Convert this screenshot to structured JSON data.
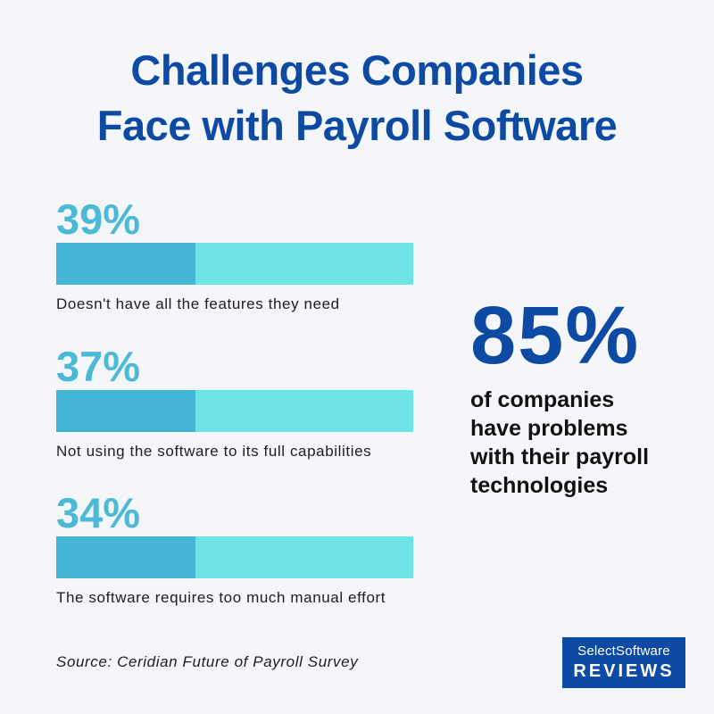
{
  "title": {
    "line1": "Challenges Companies",
    "line2": "Face with Payroll Software"
  },
  "chart_data": {
    "type": "bar",
    "title": "Challenges Companies Face with Payroll Software",
    "categories": [
      "Doesn't have all the features they need",
      "Not using the software to its full capabilities",
      "The software requires too much manual effort"
    ],
    "values": [
      39,
      37,
      34
    ],
    "value_labels": [
      "39%",
      "37%",
      "34%"
    ],
    "ylim": [
      0,
      100
    ],
    "bar_fill_fraction": 0.39,
    "colors": {
      "fill": "#44b6d5",
      "track": "#6be3e7",
      "value_text": "#4cbad7"
    }
  },
  "highlight": {
    "value": "85%",
    "lines": [
      "of companies",
      "have problems",
      "with their payroll",
      "technologies"
    ]
  },
  "source": "Source: Ceridian Future of Payroll Survey",
  "logo": {
    "line1": "SelectSoftware",
    "line2": "REVIEWS"
  },
  "colors": {
    "brand_blue": "#0d4aa3",
    "background": "#f4f6f9"
  }
}
